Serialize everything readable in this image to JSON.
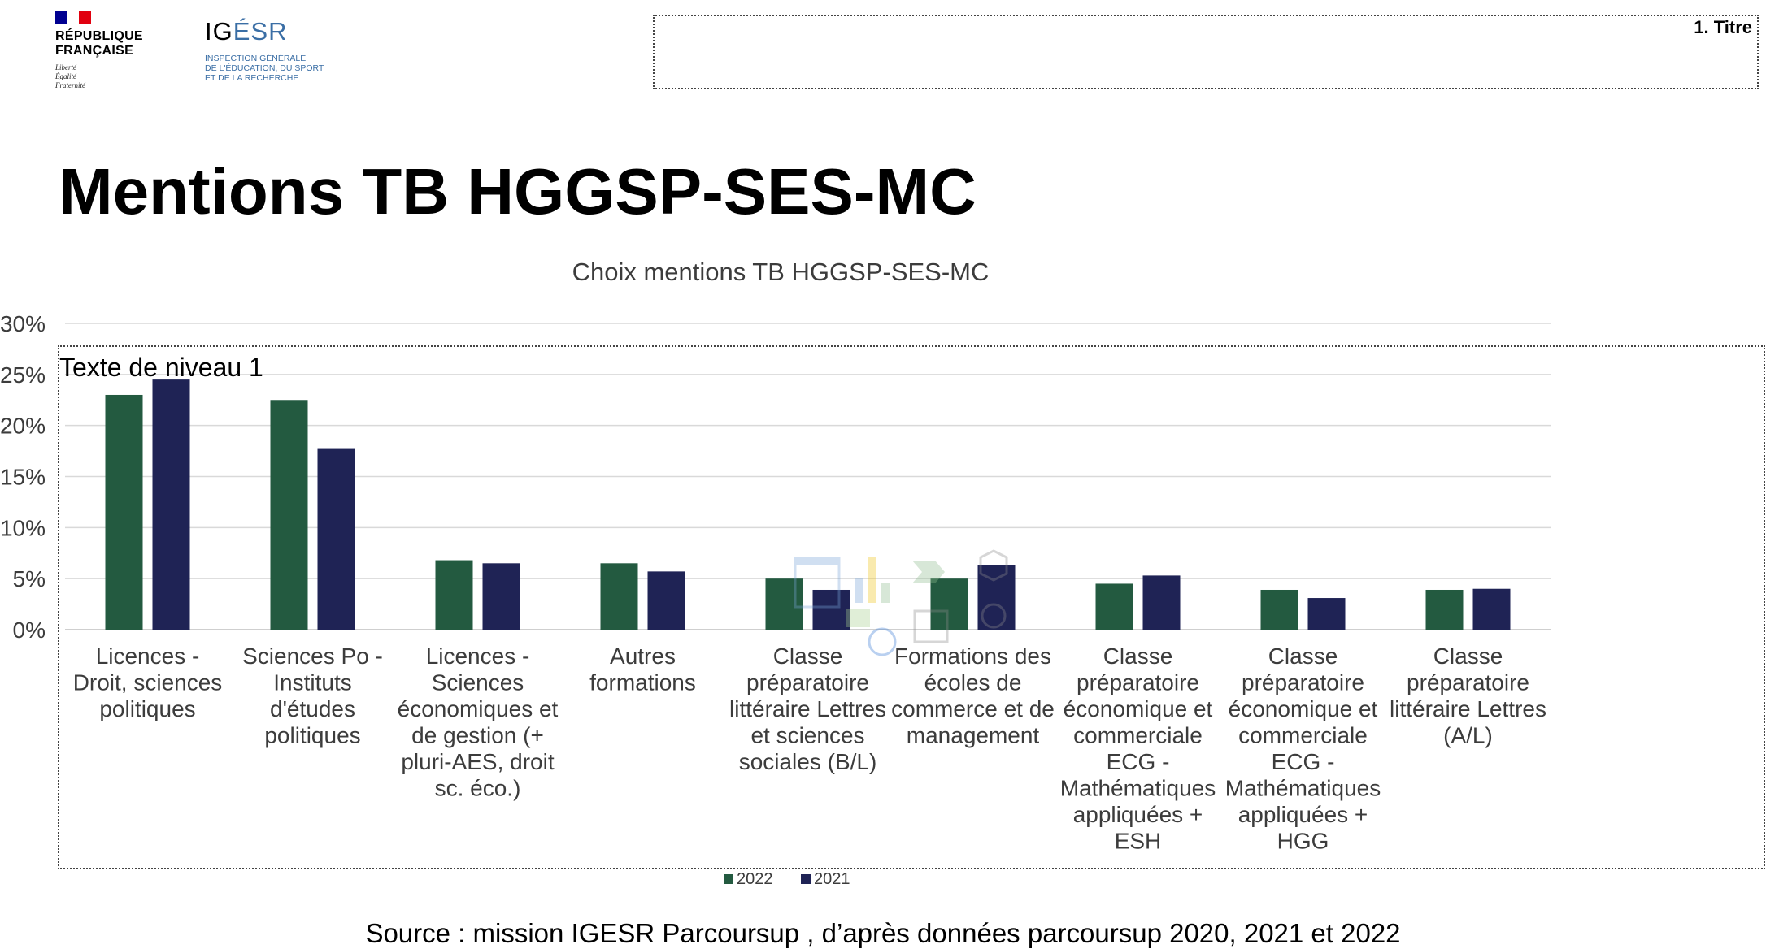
{
  "header": {
    "rf_logo": {
      "name_lines": [
        "RÉPUBLIQUE",
        "FRANÇAISE"
      ],
      "motto_lines": [
        "Liberté",
        "Égalité",
        "Fraternité"
      ],
      "flag_colors": [
        "#000091",
        "#ffffff",
        "#e1000f"
      ]
    },
    "igesr_logo": {
      "name": "IGÉSR",
      "subtitle_lines": [
        "INSPECTION GÉNÉRALE",
        "DE L'ÉDUCATION, DU SPORT",
        "ET DE LA RECHERCHE"
      ],
      "accent_color": "#3a6ea5"
    },
    "title_placeholder": "1. Titre"
  },
  "slide": {
    "title": "Mentions TB HGGSP-SES-MC",
    "body_placeholder": "Texte de niveau 1",
    "source": "Source : mission IGESR Parcoursup , d’après données parcoursup 2020, 2021 et 2022"
  },
  "chart_data": {
    "type": "bar",
    "title": "Choix mentions TB HGGSP-SES-MC",
    "xlabel": "",
    "ylabel": "",
    "ylim": [
      0,
      30
    ],
    "yticks": [
      "0%",
      "5%",
      "10%",
      "15%",
      "20%",
      "25%",
      "30%"
    ],
    "grid": true,
    "legend_position": "bottom",
    "categories": [
      [
        "Licences -",
        "Droit, sciences",
        "politiques"
      ],
      [
        "Sciences Po -",
        "Instituts",
        "d'études",
        "politiques"
      ],
      [
        "Licences -",
        "Sciences",
        "économiques et",
        "de gestion (+",
        "pluri-AES, droit",
        "sc. éco.)"
      ],
      [
        "Autres",
        "formations"
      ],
      [
        "Classe",
        "préparatoire",
        "littéraire Lettres",
        "et sciences",
        "sociales (B/L)"
      ],
      [
        "Formations des",
        "écoles de",
        "commerce et de",
        "management"
      ],
      [
        "Classe",
        "préparatoire",
        "économique et",
        "commerciale",
        "ECG -",
        "Mathématiques",
        "appliquées +",
        "ESH"
      ],
      [
        "Classe",
        "préparatoire",
        "économique et",
        "commerciale",
        "ECG -",
        "Mathématiques",
        "appliquées +",
        "HGG"
      ],
      [
        "Classe",
        "préparatoire",
        "littéraire Lettres",
        "(A/L)"
      ]
    ],
    "series": [
      {
        "name": "2022",
        "color": "#235a40",
        "values": [
          23.0,
          22.5,
          6.8,
          6.5,
          5.0,
          5.0,
          4.5,
          3.9,
          3.9
        ]
      },
      {
        "name": "2021",
        "color": "#1f2355",
        "values": [
          24.5,
          17.7,
          6.5,
          5.7,
          3.9,
          6.3,
          5.3,
          3.1,
          4.0
        ]
      }
    ]
  }
}
